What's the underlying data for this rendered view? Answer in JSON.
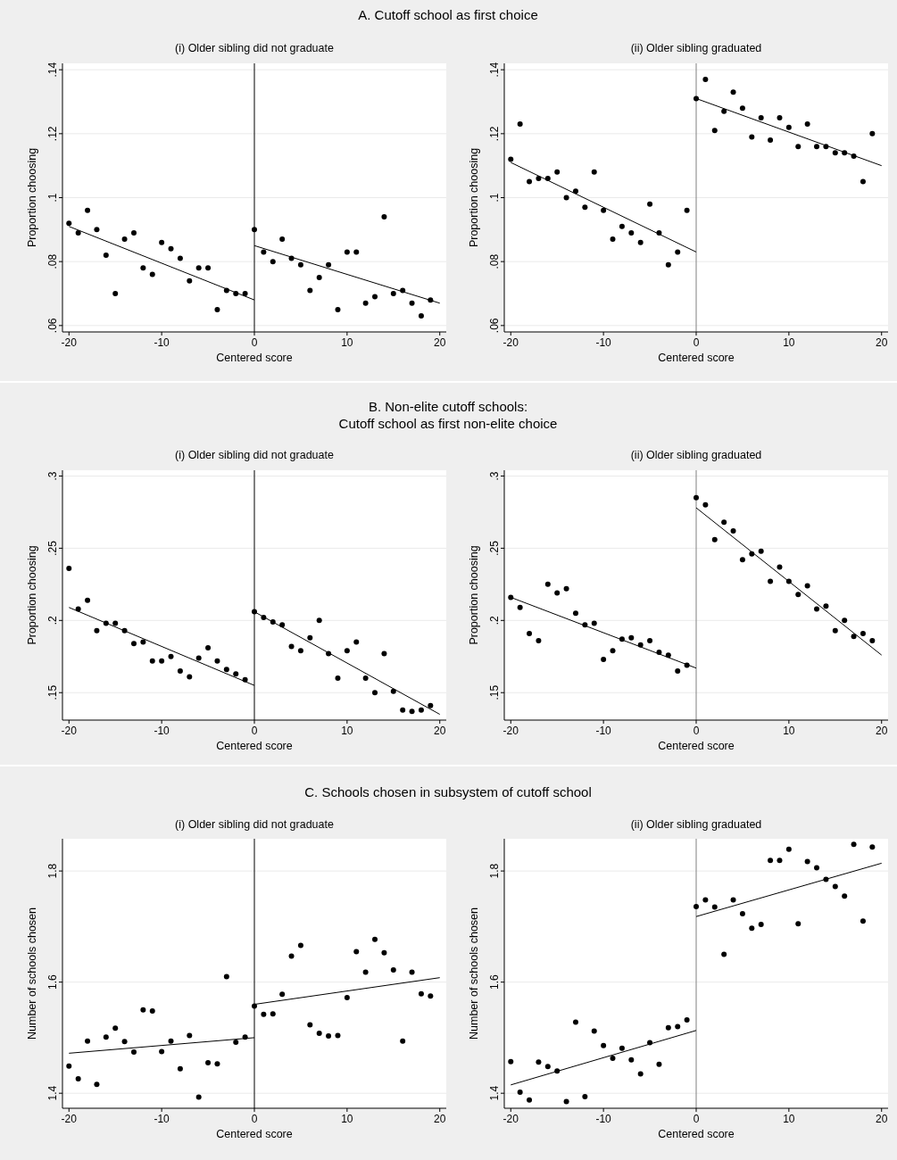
{
  "chart_data": [
    {
      "type": "scatter",
      "title": "(i) Older sibling did not graduate",
      "annotations": [
        "A. Cutoff school as first choice"
      ],
      "xlabel": "Centered score",
      "ylabel": "Proportion choosing",
      "xlim": [
        -20.7,
        20.7
      ],
      "ylim": [
        0.058,
        0.142
      ],
      "xticks": [
        -20,
        -10,
        0,
        10,
        20
      ],
      "yticks": [
        {
          "value": 0.06,
          "label": ".06"
        },
        {
          "value": 0.08,
          "label": ".08"
        },
        {
          "value": 0.1,
          "label": ".1"
        },
        {
          "value": 0.12,
          "label": ".12"
        },
        {
          "value": 0.14,
          "label": ".14"
        }
      ],
      "grid": "y",
      "ref_lines": [
        {
          "axis": "x",
          "value": 0,
          "color": "#000000"
        }
      ],
      "series": [
        {
          "marker": "circle",
          "color": "#000000",
          "x": [
            -20,
            -19,
            -18,
            -17,
            -16,
            -15,
            -14,
            -13,
            -12,
            -11,
            -10,
            -9,
            -8,
            -7,
            -6,
            -5,
            -4,
            -3,
            -2,
            -1,
            0,
            1,
            2,
            3,
            4,
            5,
            6,
            7,
            8,
            9,
            10,
            11,
            12,
            13,
            14,
            15,
            16,
            17,
            18,
            19
          ],
          "values": [
            0.092,
            0.089,
            0.096,
            0.09,
            0.082,
            0.07,
            0.087,
            0.089,
            0.078,
            0.076,
            0.086,
            0.084,
            0.081,
            0.074,
            0.078,
            0.078,
            0.065,
            0.071,
            0.07,
            0.07,
            0.09,
            0.083,
            0.08,
            0.087,
            0.081,
            0.079,
            0.071,
            0.075,
            0.079,
            0.065,
            0.083,
            0.083,
            0.067,
            0.069,
            0.094,
            0.07,
            0.071,
            0.067,
            0.063,
            0.068
          ]
        },
        {
          "type": "line",
          "color": "#000000",
          "x": [
            -20,
            0
          ],
          "values": [
            0.091,
            0.068
          ]
        },
        {
          "type": "line",
          "color": "#000000",
          "x": [
            0,
            20
          ],
          "values": [
            0.085,
            0.067
          ]
        }
      ]
    },
    {
      "type": "scatter",
      "title": "(ii) Older sibling graduated",
      "xlabel": "Centered score",
      "ylabel": "Proportion choosing",
      "xlim": [
        -20.7,
        20.7
      ],
      "ylim": [
        0.058,
        0.142
      ],
      "xticks": [
        -20,
        -10,
        0,
        10,
        20
      ],
      "yticks": [
        {
          "value": 0.06,
          "label": ".06"
        },
        {
          "value": 0.08,
          "label": ".08"
        },
        {
          "value": 0.1,
          "label": ".1"
        },
        {
          "value": 0.12,
          "label": ".12"
        },
        {
          "value": 0.14,
          "label": ".14"
        }
      ],
      "grid": "y",
      "ref_lines": [
        {
          "axis": "x",
          "value": 0,
          "color": "#808080"
        }
      ],
      "series": [
        {
          "marker": "circle",
          "color": "#000000",
          "x": [
            -20,
            -19,
            -18,
            -17,
            -16,
            -15,
            -14,
            -13,
            -12,
            -11,
            -10,
            -9,
            -8,
            -7,
            -6,
            -5,
            -4,
            -3,
            -2,
            -1,
            0,
            1,
            2,
            3,
            4,
            5,
            6,
            7,
            8,
            9,
            10,
            11,
            12,
            13,
            14,
            15,
            16,
            17,
            18,
            19
          ],
          "values": [
            0.112,
            0.123,
            0.105,
            0.106,
            0.106,
            0.108,
            0.1,
            0.102,
            0.097,
            0.108,
            0.096,
            0.087,
            0.091,
            0.089,
            0.086,
            0.098,
            0.089,
            0.079,
            0.083,
            0.096,
            0.131,
            0.137,
            0.121,
            0.127,
            0.133,
            0.128,
            0.119,
            0.125,
            0.118,
            0.125,
            0.122,
            0.116,
            0.123,
            0.116,
            0.116,
            0.114,
            0.114,
            0.113,
            0.105,
            0.12
          ]
        },
        {
          "type": "line",
          "color": "#000000",
          "x": [
            -20,
            0
          ],
          "values": [
            0.111,
            0.083
          ]
        },
        {
          "type": "line",
          "color": "#000000",
          "x": [
            0,
            20
          ],
          "values": [
            0.131,
            0.11
          ]
        }
      ]
    },
    {
      "type": "scatter",
      "title": "(i) Older sibling did not graduate",
      "annotations": [
        "B. Non-elite cutoff schools:\nCutoff school as first non-elite choice"
      ],
      "xlabel": "Centered score",
      "ylabel": "Proportion choosing",
      "xlim": [
        -20.7,
        20.7
      ],
      "ylim": [
        0.131,
        0.304
      ],
      "xticks": [
        -20,
        -10,
        0,
        10,
        20
      ],
      "yticks": [
        {
          "value": 0.15,
          "label": ".15"
        },
        {
          "value": 0.2,
          "label": ".2"
        },
        {
          "value": 0.25,
          "label": ".25"
        },
        {
          "value": 0.3,
          "label": ".3"
        }
      ],
      "grid": "y",
      "ref_lines": [
        {
          "axis": "x",
          "value": 0,
          "color": "#000000"
        }
      ],
      "series": [
        {
          "marker": "circle",
          "color": "#000000",
          "x": [
            -20,
            -19,
            -18,
            -17,
            -16,
            -15,
            -14,
            -13,
            -12,
            -11,
            -10,
            -9,
            -8,
            -7,
            -6,
            -5,
            -4,
            -3,
            -2,
            -1,
            0,
            1,
            2,
            3,
            4,
            5,
            6,
            7,
            8,
            9,
            10,
            11,
            12,
            13,
            14,
            15,
            16,
            17,
            18,
            19
          ],
          "values": [
            0.236,
            0.208,
            0.214,
            0.193,
            0.198,
            0.198,
            0.193,
            0.184,
            0.185,
            0.172,
            0.172,
            0.175,
            0.165,
            0.161,
            0.174,
            0.181,
            0.172,
            0.166,
            0.163,
            0.159,
            0.206,
            0.202,
            0.199,
            0.197,
            0.182,
            0.179,
            0.188,
            0.2,
            0.177,
            0.16,
            0.179,
            0.185,
            0.16,
            0.15,
            0.177,
            0.151,
            0.138,
            0.137,
            0.138,
            0.141
          ]
        },
        {
          "type": "line",
          "color": "#000000",
          "x": [
            -20,
            0
          ],
          "values": [
            0.209,
            0.155
          ]
        },
        {
          "type": "line",
          "color": "#000000",
          "x": [
            0,
            20
          ],
          "values": [
            0.206,
            0.135
          ]
        }
      ]
    },
    {
      "type": "scatter",
      "title": "(ii) Older sibling graduated",
      "xlabel": "Centered score",
      "ylabel": "Proportion choosing",
      "xlim": [
        -20.7,
        20.7
      ],
      "ylim": [
        0.131,
        0.304
      ],
      "xticks": [
        -20,
        -10,
        0,
        10,
        20
      ],
      "yticks": [
        {
          "value": 0.15,
          "label": ".15"
        },
        {
          "value": 0.2,
          "label": ".2"
        },
        {
          "value": 0.25,
          "label": ".25"
        },
        {
          "value": 0.3,
          "label": ".3"
        }
      ],
      "grid": "y",
      "ref_lines": [
        {
          "axis": "x",
          "value": 0,
          "color": "#808080"
        }
      ],
      "series": [
        {
          "marker": "circle",
          "color": "#000000",
          "x": [
            -20,
            -19,
            -18,
            -17,
            -16,
            -15,
            -14,
            -13,
            -12,
            -11,
            -10,
            -9,
            -8,
            -7,
            -6,
            -5,
            -4,
            -3,
            -2,
            -1,
            0,
            1,
            2,
            3,
            4,
            5,
            6,
            7,
            8,
            9,
            10,
            11,
            12,
            13,
            14,
            15,
            16,
            17,
            18,
            19
          ],
          "values": [
            0.216,
            0.209,
            0.191,
            0.186,
            0.225,
            0.219,
            0.222,
            0.205,
            0.197,
            0.198,
            0.173,
            0.179,
            0.187,
            0.188,
            0.183,
            0.186,
            0.178,
            0.176,
            0.165,
            0.169,
            0.285,
            0.28,
            0.256,
            0.268,
            0.262,
            0.242,
            0.246,
            0.248,
            0.227,
            0.237,
            0.227,
            0.218,
            0.224,
            0.208,
            0.21,
            0.193,
            0.2,
            0.189,
            0.191,
            0.186
          ]
        },
        {
          "type": "line",
          "color": "#000000",
          "x": [
            -20,
            0
          ],
          "values": [
            0.216,
            0.167
          ]
        },
        {
          "type": "line",
          "color": "#000000",
          "x": [
            0,
            20
          ],
          "values": [
            0.278,
            0.176
          ]
        }
      ]
    },
    {
      "type": "scatter",
      "title": "(i) Older sibling did not graduate",
      "annotations": [
        "C. Schools chosen in subsystem of cutoff school"
      ],
      "xlabel": "Centered score",
      "ylabel": "Number of schools chosen",
      "xlim": [
        -20.7,
        20.7
      ],
      "ylim": [
        1.373,
        1.858
      ],
      "xticks": [
        -20,
        -10,
        0,
        10,
        20
      ],
      "yticks": [
        1.4,
        1.6,
        1.8
      ],
      "grid": "y",
      "ref_lines": [
        {
          "axis": "x",
          "value": 0,
          "color": "#000000"
        }
      ],
      "series": [
        {
          "marker": "circle",
          "color": "#000000",
          "x": [
            -20,
            -19,
            -18,
            -17,
            -16,
            -15,
            -14,
            -13,
            -12,
            -11,
            -10,
            -9,
            -8,
            -7,
            -6,
            -5,
            -4,
            -3,
            -2,
            -1,
            0,
            1,
            2,
            3,
            4,
            5,
            6,
            7,
            8,
            9,
            10,
            11,
            12,
            13,
            14,
            15,
            16,
            17,
            18,
            19
          ],
          "values": [
            1.449,
            1.426,
            1.494,
            1.416,
            1.501,
            1.517,
            1.493,
            1.474,
            1.55,
            1.548,
            1.475,
            1.494,
            1.444,
            1.504,
            1.393,
            1.455,
            1.453,
            1.61,
            1.492,
            1.501,
            1.557,
            1.542,
            1.543,
            1.578,
            1.647,
            1.666,
            1.523,
            1.508,
            1.503,
            1.504,
            1.572,
            1.655,
            1.618,
            1.677,
            1.653,
            1.622,
            1.494,
            1.618,
            1.579,
            1.575
          ]
        },
        {
          "type": "line",
          "color": "#000000",
          "x": [
            -20,
            0
          ],
          "values": [
            1.472,
            1.5
          ]
        },
        {
          "type": "line",
          "color": "#000000",
          "x": [
            0,
            20
          ],
          "values": [
            1.56,
            1.608
          ]
        }
      ]
    },
    {
      "type": "scatter",
      "title": "(ii) Older sibling graduated",
      "xlabel": "Centered score",
      "ylabel": "Number of schools chosen",
      "xlim": [
        -20.7,
        20.7
      ],
      "ylim": [
        1.373,
        1.858
      ],
      "xticks": [
        -20,
        -10,
        0,
        10,
        20
      ],
      "yticks": [
        1.4,
        1.6,
        1.8
      ],
      "grid": "y",
      "ref_lines": [
        {
          "axis": "x",
          "value": 0,
          "color": "#808080"
        }
      ],
      "series": [
        {
          "marker": "circle",
          "color": "#000000",
          "x": [
            -20,
            -19,
            -18,
            -17,
            -16,
            -15,
            -14,
            -13,
            -12,
            -11,
            -10,
            -9,
            -8,
            -7,
            -6,
            -5,
            -4,
            -3,
            -2,
            -1,
            0,
            1,
            2,
            3,
            4,
            5,
            6,
            7,
            8,
            9,
            10,
            11,
            12,
            13,
            14,
            15,
            16,
            17,
            18,
            19
          ],
          "values": [
            1.457,
            1.402,
            1.388,
            1.456,
            1.448,
            1.44,
            1.385,
            1.528,
            1.394,
            1.512,
            1.486,
            1.463,
            1.481,
            1.46,
            1.435,
            1.491,
            1.452,
            1.518,
            1.52,
            1.532,
            1.736,
            1.748,
            1.735,
            1.65,
            1.748,
            1.723,
            1.697,
            1.704,
            1.819,
            1.819,
            1.839,
            1.705,
            1.817,
            1.806,
            1.785,
            1.772,
            1.755,
            1.848,
            1.71,
            1.843
          ]
        },
        {
          "type": "line",
          "color": "#000000",
          "x": [
            -20,
            0
          ],
          "values": [
            1.415,
            1.513
          ]
        },
        {
          "type": "line",
          "color": "#000000",
          "x": [
            0,
            20
          ],
          "values": [
            1.718,
            1.814
          ]
        }
      ]
    }
  ]
}
